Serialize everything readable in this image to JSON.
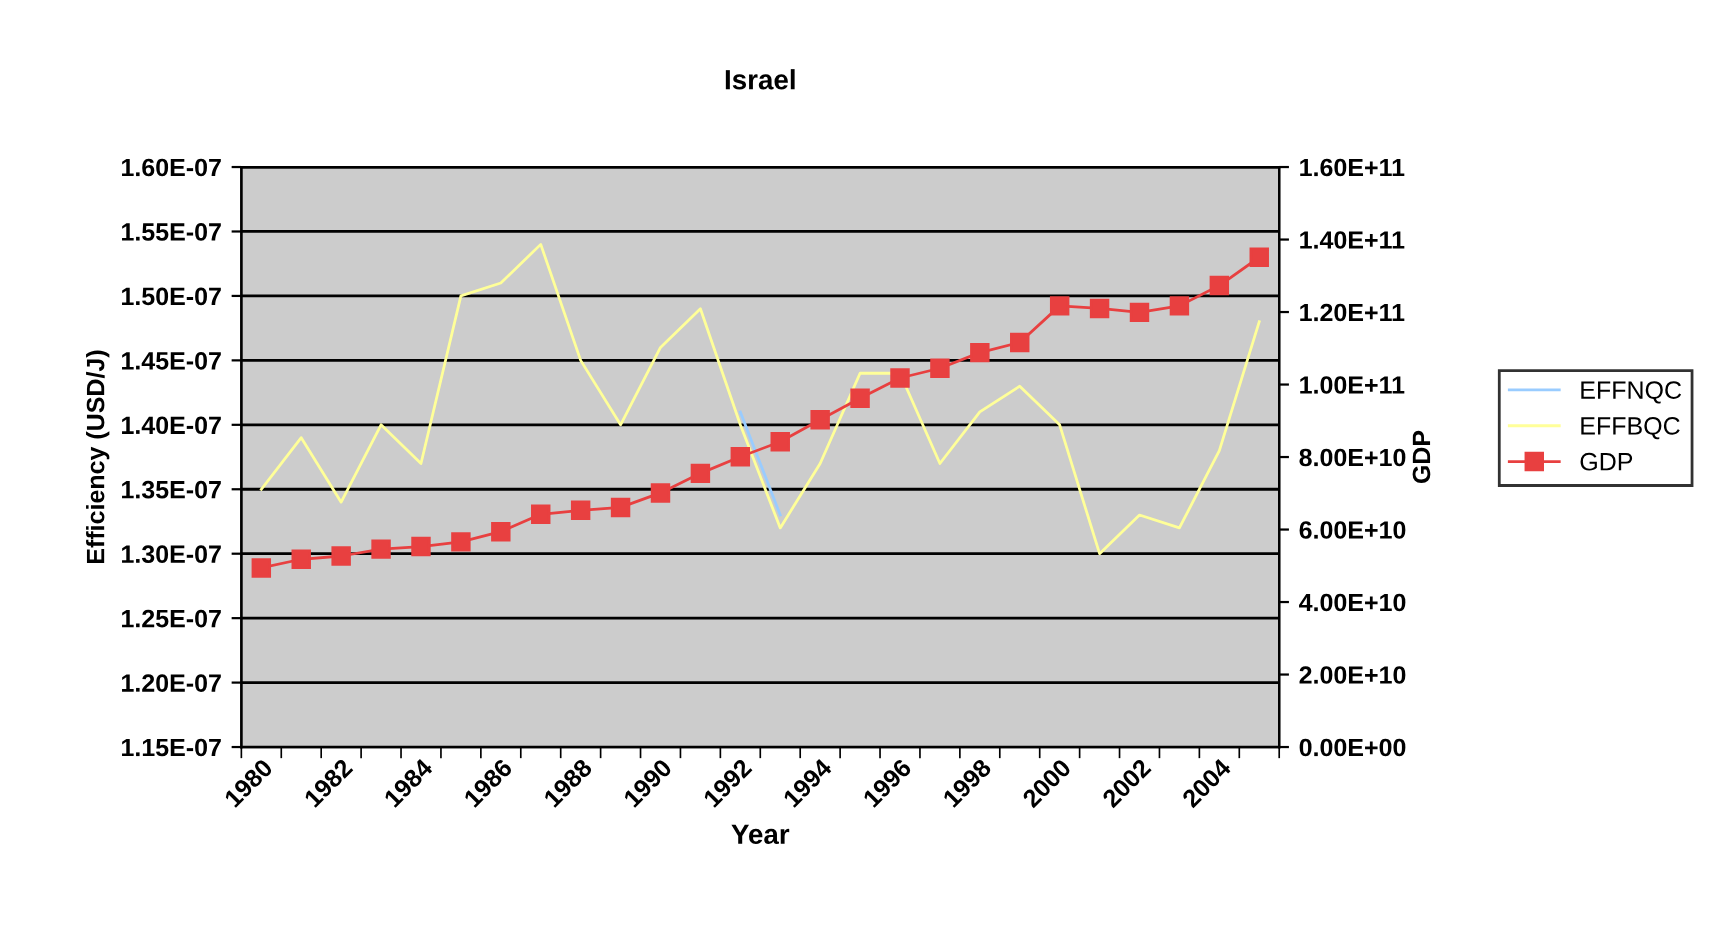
{
  "chart_data": {
    "type": "line",
    "title": "Israel",
    "xlabel": "Year",
    "ylabel": "Efficiency (USD/J)",
    "y2label": "GDP",
    "categories": [
      "1980",
      null,
      "1982",
      null,
      "1984",
      null,
      "1986",
      null,
      "1988",
      null,
      "1990",
      null,
      "1992",
      null,
      "1994",
      null,
      "1996",
      null,
      "1998",
      null,
      "2000",
      null,
      "2002",
      null,
      "2004",
      null
    ],
    "series": [
      {
        "name": "EFFBQC",
        "color": "#ffff99",
        "marker": "none",
        "values": [
          1.35e-07,
          1.39e-07,
          1.34e-07,
          1.4e-07,
          1.37e-07,
          1.5e-07,
          1.51e-07,
          1.54e-07,
          1.45e-07,
          1.4e-07,
          1.46e-07,
          1.49e-07,
          1.4e-07,
          1.32e-07,
          1.37e-07,
          1.44e-07,
          1.44e-07,
          1.37e-07,
          1.41e-07,
          1.43e-07,
          1.4e-07,
          1.3e-07,
          1.33e-07,
          1.32e-07,
          1.38e-07,
          1.48e-07
        ]
      },
      {
        "name": "EFFNQC",
        "color": "#99ccff",
        "marker": "none",
        "values": [
          null,
          null,
          null,
          null,
          null,
          null,
          null,
          null,
          null,
          null,
          null,
          null,
          1.41e-07,
          1.33e-07,
          null,
          null,
          null,
          null,
          null,
          null,
          null,
          null,
          null,
          null,
          null,
          null
        ]
      },
      {
        "name": "GDP",
        "color": "#e84040",
        "marker": "square",
        "axis": "y2",
        "values": [
          49400000000.0,
          51800000000.0,
          52700000000.0,
          54600000000.0,
          55300000000.0,
          56600000000.0,
          59400000000.0,
          64200000000.0,
          65300000000.0,
          66100000000.0,
          70100000000.0,
          75500000000.0,
          80100000000.0,
          84200000000.0,
          90300000000.0,
          96200000000.0,
          101800000000.0,
          104500000000.0,
          108800000000.0,
          111600000000.0,
          121700000000.0,
          121000000000.0,
          119900000000.0,
          121700000000.0,
          127300000000.0,
          135100000000.0
        ]
      }
    ],
    "ylim": [
      1.15e-07,
      1.6e-07
    ],
    "yticks": [
      {
        "value": 1.15e-07,
        "label": "1.15E-07"
      },
      {
        "value": 1.2e-07,
        "label": "1.20E-07"
      },
      {
        "value": 1.25e-07,
        "label": "1.25E-07"
      },
      {
        "value": 1.3e-07,
        "label": "1.30E-07"
      },
      {
        "value": 1.35e-07,
        "label": "1.35E-07"
      },
      {
        "value": 1.4e-07,
        "label": "1.40E-07"
      },
      {
        "value": 1.45e-07,
        "label": "1.45E-07"
      },
      {
        "value": 1.5e-07,
        "label": "1.50E-07"
      },
      {
        "value": 1.55e-07,
        "label": "1.55E-07"
      },
      {
        "value": 1.6e-07,
        "label": "1.60E-07"
      }
    ],
    "y2lim": [
      0,
      160000000000.0
    ],
    "y2ticks": [
      {
        "value": 0,
        "label": "0.00E+00"
      },
      {
        "value": 20000000000.0,
        "label": "2.00E+10"
      },
      {
        "value": 40000000000.0,
        "label": "4.00E+10"
      },
      {
        "value": 60000000000.0,
        "label": "6.00E+10"
      },
      {
        "value": 80000000000.0,
        "label": "8.00E+10"
      },
      {
        "value": 100000000000.0,
        "label": "1.00E+11"
      },
      {
        "value": 120000000000.0,
        "label": "1.20E+11"
      },
      {
        "value": 140000000000.0,
        "label": "1.40E+11"
      },
      {
        "value": 160000000000.0,
        "label": "1.60E+11"
      }
    ],
    "grid": "y",
    "legend": "right",
    "line_style": "solid"
  }
}
